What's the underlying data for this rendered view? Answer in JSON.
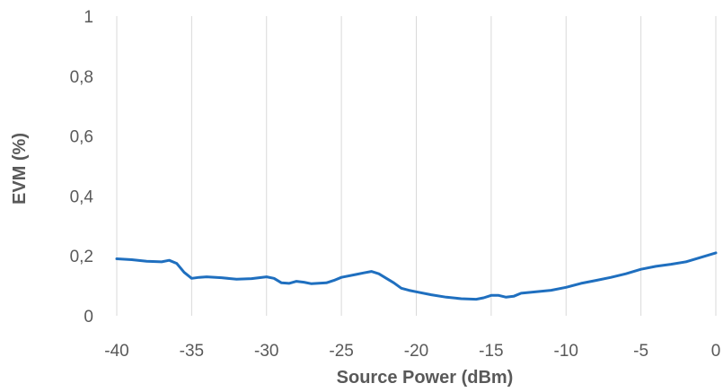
{
  "chart_data": {
    "type": "line",
    "xlabel": "Source Power (dBm)",
    "ylabel": "EVM (%)",
    "xlim": [
      -40,
      0
    ],
    "ylim": [
      0,
      1
    ],
    "x_ticks": [
      -40,
      -35,
      -30,
      -25,
      -20,
      -15,
      -10,
      -5,
      0
    ],
    "x_tick_labels": [
      "-40",
      "-35",
      "-30",
      "-25",
      "-20",
      "-15",
      "-10",
      "-5",
      "0"
    ],
    "y_ticks": [
      0,
      0.2,
      0.4,
      0.6,
      0.8,
      1
    ],
    "y_tick_labels": [
      "0",
      "0,2",
      "0,4",
      "0,6",
      "0,8",
      "1"
    ],
    "grid": "vertical",
    "series": [
      {
        "color": "#1f6fbf",
        "x": [
          -40,
          -39,
          -38,
          -37,
          -36.5,
          -36,
          -35.5,
          -35,
          -34.5,
          -34,
          -33,
          -32,
          -31,
          -30,
          -29.5,
          -29,
          -28.5,
          -28,
          -27.5,
          -27,
          -26,
          -25.5,
          -25,
          -24,
          -23.5,
          -23,
          -22.5,
          -22,
          -21.5,
          -21,
          -20.5,
          -20,
          -19,
          -18,
          -17,
          -16,
          -15.5,
          -15,
          -14.5,
          -14,
          -13.5,
          -13,
          -12,
          -11,
          -10,
          -9,
          -8,
          -7,
          -6,
          -5,
          -4,
          -3,
          -2,
          -1,
          0
        ],
        "y": [
          0.19,
          0.187,
          0.182,
          0.18,
          0.185,
          0.175,
          0.145,
          0.125,
          0.128,
          0.13,
          0.127,
          0.122,
          0.124,
          0.13,
          0.125,
          0.11,
          0.108,
          0.115,
          0.112,
          0.107,
          0.11,
          0.118,
          0.128,
          0.138,
          0.143,
          0.148,
          0.14,
          0.125,
          0.11,
          0.092,
          0.085,
          0.08,
          0.07,
          0.062,
          0.057,
          0.055,
          0.06,
          0.068,
          0.068,
          0.062,
          0.065,
          0.075,
          0.08,
          0.085,
          0.095,
          0.108,
          0.118,
          0.128,
          0.14,
          0.155,
          0.165,
          0.172,
          0.18,
          0.195,
          0.21
        ]
      }
    ]
  }
}
